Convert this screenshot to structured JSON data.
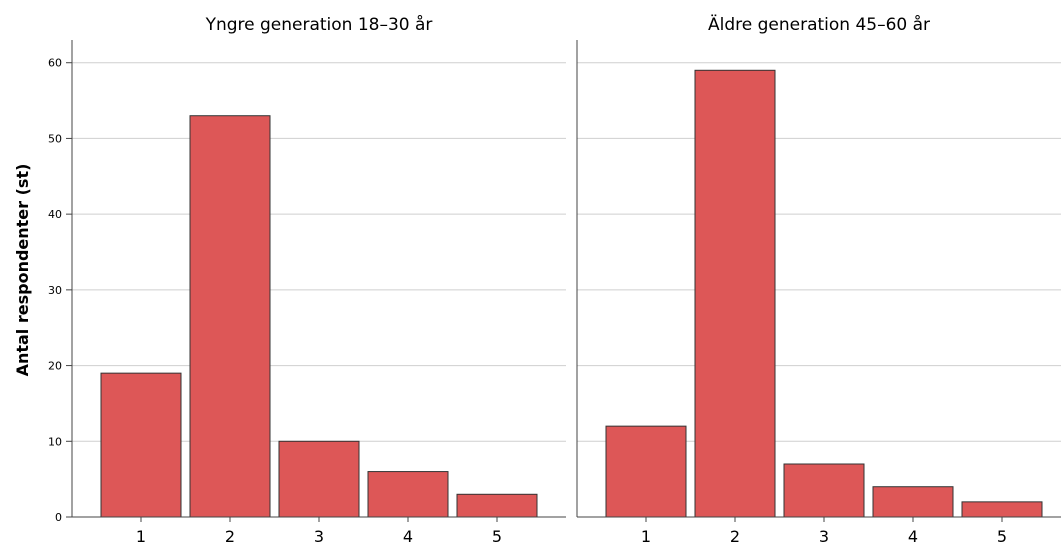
{
  "chart_data": {
    "type": "bar",
    "ylabel": "Antal respondenter (st)",
    "ylim": [
      0,
      63
    ],
    "yticks": [
      0,
      10,
      20,
      30,
      40,
      50,
      60
    ],
    "grid": true,
    "bar_color": "#dd5757",
    "categories": [
      "1",
      "2",
      "3",
      "4",
      "5"
    ],
    "panels": [
      {
        "title": "Yngre generation 18–30 år",
        "values": [
          19,
          53,
          10,
          6,
          3
        ]
      },
      {
        "title": "Äldre generation 45–60 år",
        "values": [
          12,
          59,
          7,
          4,
          2
        ]
      }
    ]
  }
}
